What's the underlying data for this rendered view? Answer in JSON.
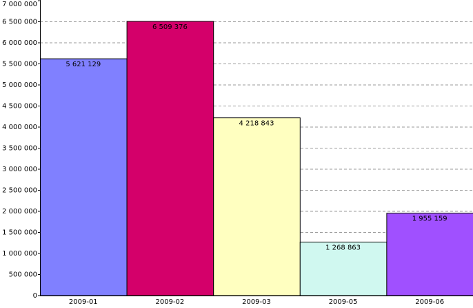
{
  "chart_data": {
    "type": "bar",
    "categories": [
      "2009-01",
      "2009-02",
      "2009-03",
      "2009-05",
      "2009-06"
    ],
    "values": [
      5621129,
      6509376,
      4218843,
      1268863,
      1955159
    ],
    "value_labels": [
      "5 621 129",
      "6 509 376",
      "4 218 843",
      "1 268 863",
      "1 955 159"
    ],
    "colors": [
      "#8080ff",
      "#d4006a",
      "#ffffc0",
      "#d0f8f0",
      "#a050ff"
    ],
    "ylim": [
      0,
      7000000
    ],
    "yticks": [
      0,
      {
        "value": 500000,
        "label": "500 000"
      },
      {
        "value": 1000000,
        "label": "1 000 000"
      },
      {
        "value": 1500000,
        "label": "1 500 000"
      },
      {
        "value": 2000000,
        "label": "2 000 000"
      },
      {
        "value": 2500000,
        "label": "2 500 000"
      },
      {
        "value": 3000000,
        "label": "3 000 000"
      },
      {
        "value": 3500000,
        "label": "3 500 000"
      },
      {
        "value": 4000000,
        "label": "4 000 000"
      },
      {
        "value": 4500000,
        "label": "4 500 000"
      },
      {
        "value": 5000000,
        "label": "5 000 000"
      },
      {
        "value": 5500000,
        "label": "5 500 000"
      },
      {
        "value": 6000000,
        "label": "6 000 000"
      },
      {
        "value": 6500000,
        "label": "6 500 000"
      },
      {
        "value": 7000000,
        "label": "7 000 000"
      }
    ],
    "grid": true
  }
}
